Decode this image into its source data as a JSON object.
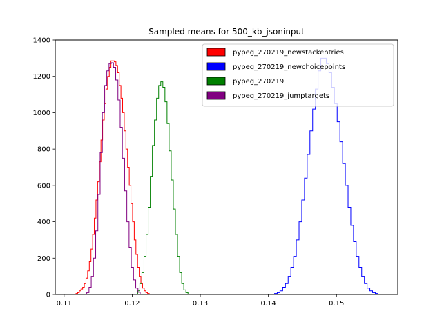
{
  "chart_data": {
    "type": "step-histogram",
    "title": "Sampled means for 500_kb_jsoninput",
    "xlabel": "",
    "ylabel": "",
    "xlim": [
      0.1087,
      0.159
    ],
    "ylim": [
      0,
      1400
    ],
    "xticks": [
      0.11,
      0.12,
      0.13,
      0.14,
      0.15
    ],
    "xtick_labels": [
      "0.11",
      "0.12",
      "0.13",
      "0.14",
      "0.15"
    ],
    "yticks": [
      0,
      200,
      400,
      600,
      800,
      1000,
      1200,
      1400
    ],
    "ytick_labels": [
      "0",
      "200",
      "400",
      "600",
      "800",
      "1000",
      "1200",
      "1400"
    ],
    "legend_position": "top-right",
    "series": [
      {
        "name": "pypeg_270219_newstackentries",
        "color": "#ff0000",
        "edges": [
          0.1115,
          0.1225
        ],
        "counts": [
          0,
          5,
          10,
          20,
          30,
          40,
          60,
          90,
          130,
          180,
          250,
          330,
          420,
          520,
          620,
          730,
          850,
          960,
          1050,
          1130,
          1200,
          1250,
          1285,
          1285,
          1280,
          1260,
          1220,
          1150,
          1080,
          1000,
          900,
          800,
          700,
          600,
          500,
          400,
          300,
          220,
          150,
          100,
          60,
          35,
          20,
          10,
          5
        ]
      },
      {
        "name": "pypeg_270219_newchoicepoints",
        "color": "#0000ff",
        "edges": [
          0.1405,
          0.1565
        ],
        "counts": [
          0,
          5,
          10,
          20,
          40,
          60,
          100,
          150,
          210,
          300,
          400,
          520,
          640,
          770,
          900,
          1020,
          1130,
          1230,
          1300,
          1300,
          1270,
          1220,
          1140,
          1050,
          950,
          840,
          720,
          600,
          480,
          380,
          290,
          210,
          150,
          100,
          60,
          35,
          20,
          10,
          5,
          0
        ]
      },
      {
        "name": "pypeg_270219",
        "color": "#008000",
        "edges": [
          0.1205,
          0.1285
        ],
        "counts": [
          0,
          20,
          60,
          120,
          210,
          330,
          480,
          650,
          820,
          960,
          1080,
          1150,
          1170,
          1140,
          1060,
          940,
          790,
          630,
          470,
          330,
          210,
          120,
          60,
          25,
          10,
          0
        ]
      },
      {
        "name": "pypeg_270219_jumptargets",
        "color": "#800080",
        "edges": [
          0.113,
          0.1215
        ],
        "counts": [
          0,
          10,
          40,
          100,
          200,
          350,
          550,
          780,
          1000,
          1150,
          1230,
          1270,
          1275,
          1250,
          1180,
          1070,
          920,
          750,
          570,
          400,
          260,
          150,
          80,
          35,
          12,
          0
        ]
      }
    ]
  }
}
